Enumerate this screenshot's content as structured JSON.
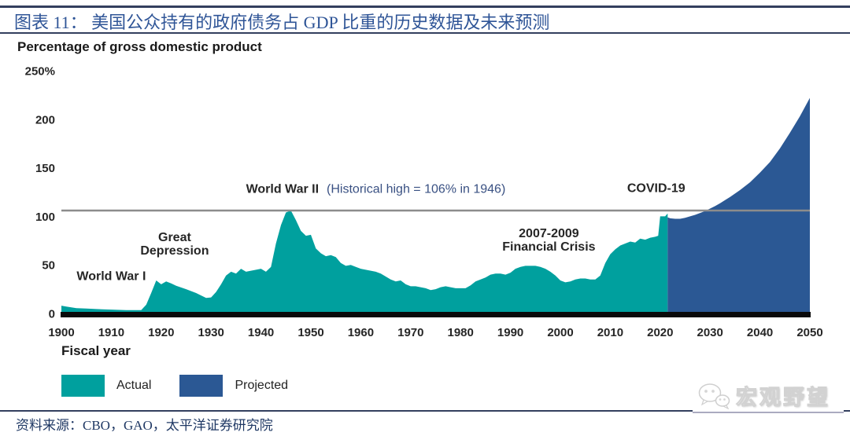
{
  "header": {
    "title": "图表 11：  美国公众持有的政府债务占 GDP 比重的历史数据及未来预测"
  },
  "chart_data": {
    "type": "area",
    "title": "Percentage of gross domestic product",
    "xlabel": "Fiscal year",
    "ylabel": "Percentage of gross domestic product",
    "xlim": [
      1900,
      2050
    ],
    "ylim": [
      0,
      250
    ],
    "grid": false,
    "legend_position": "bottom-left",
    "x_ticks": [
      1900,
      1910,
      1920,
      1930,
      1940,
      1950,
      1960,
      1970,
      1980,
      1990,
      2000,
      2010,
      2020,
      2030,
      2040,
      2050
    ],
    "y_ticks": [
      {
        "v": 0,
        "label": "0"
      },
      {
        "v": 50,
        "label": "50"
      },
      {
        "v": 100,
        "label": "100"
      },
      {
        "v": 150,
        "label": "150"
      },
      {
        "v": 200,
        "label": "200"
      },
      {
        "v": 250,
        "label": "250%"
      }
    ],
    "reference_line": {
      "value": 106,
      "color": "#8C8C8C",
      "meaning": "Historical high = 106% in 1946"
    },
    "series": [
      {
        "name": "Actual",
        "color": "#00A09E",
        "points": [
          [
            1900,
            8
          ],
          [
            1901,
            7
          ],
          [
            1903,
            5.5
          ],
          [
            1905,
            5
          ],
          [
            1907,
            4.5
          ],
          [
            1910,
            4
          ],
          [
            1913,
            3.5
          ],
          [
            1916,
            3.5
          ],
          [
            1917,
            9
          ],
          [
            1918,
            21
          ],
          [
            1919,
            34
          ],
          [
            1920,
            30
          ],
          [
            1921,
            33
          ],
          [
            1922,
            31
          ],
          [
            1923,
            28.5
          ],
          [
            1925,
            25
          ],
          [
            1927,
            21
          ],
          [
            1929,
            16
          ],
          [
            1930,
            16.5
          ],
          [
            1931,
            22
          ],
          [
            1932,
            30
          ],
          [
            1933,
            39
          ],
          [
            1934,
            43
          ],
          [
            1935,
            41
          ],
          [
            1936,
            46
          ],
          [
            1937,
            43
          ],
          [
            1938,
            44
          ],
          [
            1939,
            45
          ],
          [
            1940,
            46
          ],
          [
            1941,
            43
          ],
          [
            1942,
            48
          ],
          [
            1943,
            72
          ],
          [
            1944,
            91
          ],
          [
            1945,
            104
          ],
          [
            1946,
            106
          ],
          [
            1947,
            96
          ],
          [
            1948,
            85
          ],
          [
            1949,
            80
          ],
          [
            1950,
            81
          ],
          [
            1951,
            67
          ],
          [
            1952,
            62
          ],
          [
            1953,
            59
          ],
          [
            1954,
            60
          ],
          [
            1955,
            58
          ],
          [
            1956,
            52
          ],
          [
            1957,
            49
          ],
          [
            1958,
            50
          ],
          [
            1959,
            48
          ],
          [
            1960,
            46
          ],
          [
            1961,
            45
          ],
          [
            1962,
            44
          ],
          [
            1963,
            43
          ],
          [
            1964,
            41
          ],
          [
            1965,
            38
          ],
          [
            1966,
            35
          ],
          [
            1967,
            33
          ],
          [
            1968,
            34
          ],
          [
            1969,
            30
          ],
          [
            1970,
            28
          ],
          [
            1971,
            28
          ],
          [
            1972,
            27
          ],
          [
            1973,
            26
          ],
          [
            1974,
            24
          ],
          [
            1975,
            25
          ],
          [
            1976,
            27
          ],
          [
            1977,
            28
          ],
          [
            1978,
            27
          ],
          [
            1979,
            26
          ],
          [
            1980,
            26
          ],
          [
            1981,
            26
          ],
          [
            1982,
            29
          ],
          [
            1983,
            33
          ],
          [
            1984,
            35
          ],
          [
            1985,
            37
          ],
          [
            1986,
            40
          ],
          [
            1987,
            41
          ],
          [
            1988,
            41
          ],
          [
            1989,
            40
          ],
          [
            1990,
            42
          ],
          [
            1991,
            46
          ],
          [
            1992,
            48
          ],
          [
            1993,
            49
          ],
          [
            1994,
            49
          ],
          [
            1995,
            49
          ],
          [
            1996,
            48
          ],
          [
            1997,
            46
          ],
          [
            1998,
            43
          ],
          [
            1999,
            39
          ],
          [
            2000,
            34
          ],
          [
            2001,
            32
          ],
          [
            2002,
            33
          ],
          [
            2003,
            35
          ],
          [
            2004,
            36
          ],
          [
            2005,
            36
          ],
          [
            2006,
            35
          ],
          [
            2007,
            35
          ],
          [
            2008,
            39
          ],
          [
            2009,
            52
          ],
          [
            2010,
            61
          ],
          [
            2011,
            66
          ],
          [
            2012,
            70
          ],
          [
            2013,
            72
          ],
          [
            2014,
            74
          ],
          [
            2015,
            73
          ],
          [
            2016,
            77
          ],
          [
            2017,
            76
          ],
          [
            2018,
            78
          ],
          [
            2019,
            79
          ],
          [
            2019.6,
            80
          ],
          [
            2020,
            100
          ],
          [
            2021,
            100
          ],
          [
            2021.5,
            103
          ]
        ]
      },
      {
        "name": "Projected",
        "color": "#2B5894",
        "points": [
          [
            2021.5,
            99
          ],
          [
            2022,
            98
          ],
          [
            2023,
            97.5
          ],
          [
            2024,
            97.5
          ],
          [
            2025,
            98.5
          ],
          [
            2026,
            100
          ],
          [
            2027,
            101.5
          ],
          [
            2028,
            103.5
          ],
          [
            2029,
            105.5
          ],
          [
            2030,
            108
          ],
          [
            2031,
            110.5
          ],
          [
            2032,
            113.5
          ],
          [
            2034,
            120
          ],
          [
            2036,
            127
          ],
          [
            2038,
            135
          ],
          [
            2040,
            145
          ],
          [
            2042,
            156
          ],
          [
            2044,
            170
          ],
          [
            2046,
            186
          ],
          [
            2048,
            203
          ],
          [
            2050,
            222
          ]
        ]
      }
    ],
    "annotations": [
      {
        "name": "world-war-1-label",
        "x": 1910,
        "y": 38,
        "stacked": false,
        "align": "center",
        "spans": [
          {
            "text": "World War I",
            "style": "bold"
          }
        ]
      },
      {
        "name": "great-depression-label",
        "x": 1922.7,
        "y": 71,
        "stacked": true,
        "align": "center",
        "spans": [
          {
            "text": "Great",
            "style": "bold"
          },
          {
            "text": "Depression",
            "style": "bold"
          }
        ]
      },
      {
        "name": "world-war-2-label",
        "x": 1937,
        "y": 128,
        "stacked": false,
        "align": "left",
        "spans": [
          {
            "text": "World War II",
            "style": "bold"
          },
          {
            "text": "(Historical high = 106% in 1946)",
            "style": "navy"
          }
        ]
      },
      {
        "name": "financial-crisis-label",
        "x": 1997.7,
        "y": 75,
        "stacked": true,
        "align": "center",
        "spans": [
          {
            "text": "2007-2009",
            "style": "bold"
          },
          {
            "text": "Financial Crisis",
            "style": "bold"
          }
        ]
      },
      {
        "name": "covid-19-label",
        "x": 2019.2,
        "y": 129,
        "stacked": false,
        "align": "center",
        "spans": [
          {
            "text": "COVID-19",
            "style": "bold"
          }
        ]
      }
    ]
  },
  "source": {
    "text": "资料来源：CBO，GAO，太平洋证券研究院"
  },
  "watermark": {
    "text": "宏观野望"
  },
  "colors": {
    "actual": "#00A09E",
    "projected": "#2B5894",
    "reference_line": "#8C8C8C",
    "caption_text": "#2F5597",
    "rule": "#333F5E",
    "source_text": "#1F3864"
  }
}
